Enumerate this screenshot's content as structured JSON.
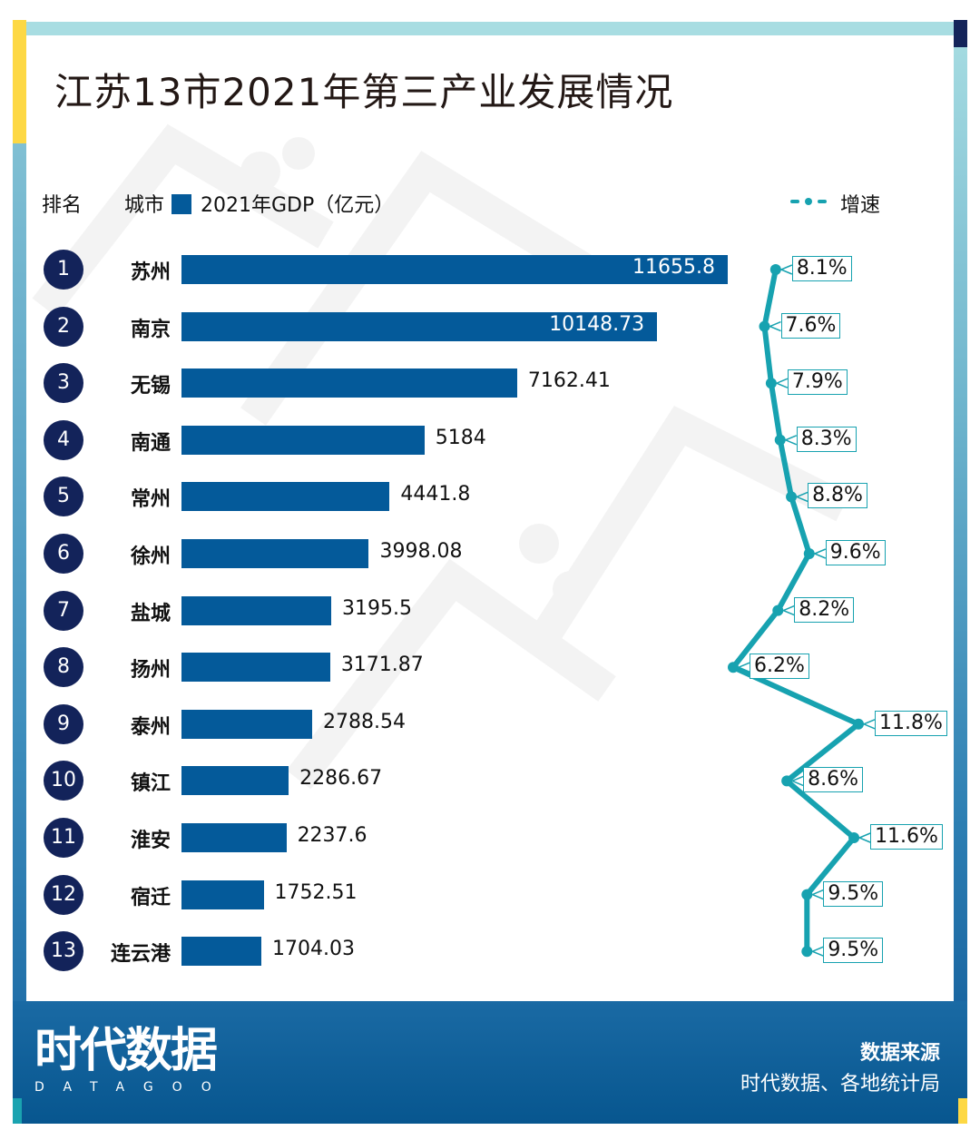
{
  "title": "江苏13市2021年第三产业发展情况",
  "header": {
    "rank_label": "排名",
    "city_label": "城市",
    "gdp_legend": "2021年GDP（亿元）",
    "growth_legend": "增速"
  },
  "colors": {
    "bar": "#045a9a",
    "line": "#17a2b0",
    "rank_circle": "#13235a",
    "accent_yellow": "#fdd844",
    "frame_light": "#a8dde2",
    "footer": "#07568f"
  },
  "chart_data": {
    "type": "bar",
    "title": "江苏13市2021年第三产业发展情况",
    "orientation": "horizontal",
    "categories": [
      "苏州",
      "南京",
      "无锡",
      "南通",
      "常州",
      "徐州",
      "盐城",
      "扬州",
      "泰州",
      "镇江",
      "淮安",
      "宿迁",
      "连云港"
    ],
    "ranks": [
      "1",
      "2",
      "3",
      "4",
      "5",
      "6",
      "7",
      "8",
      "9",
      "10",
      "11",
      "12",
      "13"
    ],
    "series": [
      {
        "name": "2021年GDP（亿元）",
        "type": "bar",
        "values": [
          11655.8,
          10148.73,
          7162.41,
          5184,
          4441.8,
          3998.08,
          3195.5,
          3171.87,
          2788.54,
          2286.67,
          2237.6,
          1752.51,
          1704.03
        ],
        "labels": [
          "11655.8",
          "10148.73",
          "7162.41",
          "5184",
          "4441.8",
          "3998.08",
          "3195.5",
          "3171.87",
          "2788.54",
          "2286.67",
          "2237.6",
          "1752.51",
          "1704.03"
        ]
      },
      {
        "name": "增速",
        "type": "line",
        "unit": "%",
        "values": [
          8.1,
          7.6,
          7.9,
          8.3,
          8.8,
          9.6,
          8.2,
          6.2,
          11.8,
          8.6,
          11.6,
          9.5,
          9.5
        ],
        "labels": [
          "8.1%",
          "7.6%",
          "7.9%",
          "8.3%",
          "8.8%",
          "9.6%",
          "8.2%",
          "6.2%",
          "11.8%",
          "8.6%",
          "11.6%",
          "9.5%",
          "9.5%"
        ]
      }
    ],
    "xlabel": "",
    "ylabel": "",
    "legend": "top",
    "grid": false
  },
  "footer": {
    "logo_text": "时代数据",
    "logo_sub": "DATAGOO",
    "source_title": "数据来源",
    "source_text": "时代数据、各地统计局"
  }
}
